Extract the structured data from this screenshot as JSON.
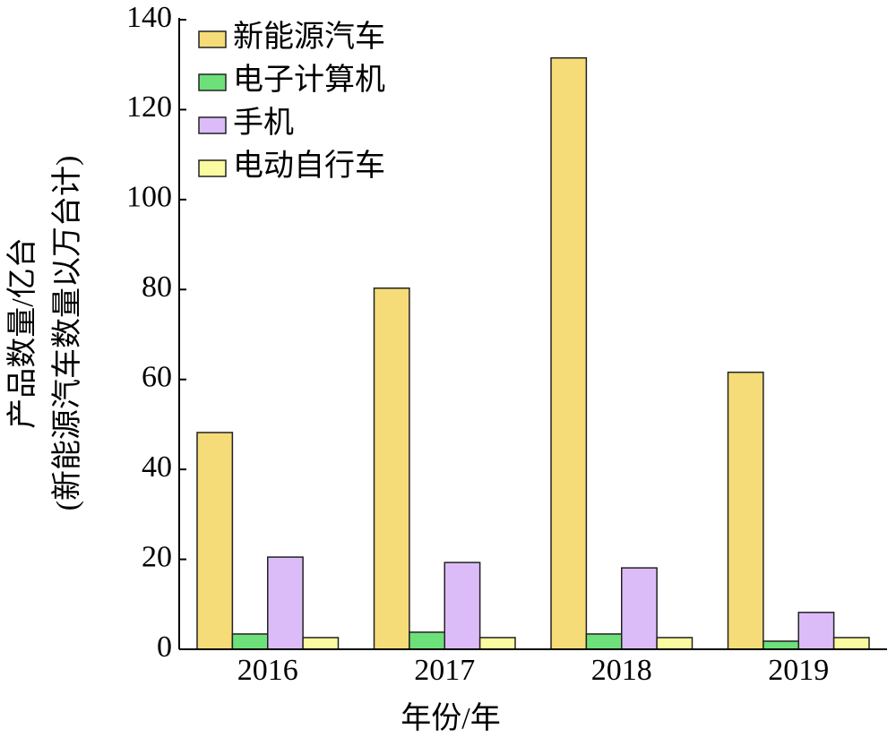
{
  "chart_data": {
    "type": "bar",
    "ylabel": "产品数量/亿台",
    "ylabel_note": "(新能源汽车数量以万台计)",
    "xlabel": "年份/年",
    "categories": [
      "2016",
      "2017",
      "2018",
      "2019"
    ],
    "series": [
      {
        "name": "新能源汽车",
        "color": "#f5dc78",
        "values": [
          48.2,
          80.3,
          131.5,
          61.6
        ]
      },
      {
        "name": "电子计算机",
        "color": "#6ee07a",
        "values": [
          3.4,
          3.8,
          3.4,
          1.8
        ]
      },
      {
        "name": "手机",
        "color": "#dcbcf8",
        "values": [
          20.5,
          19.3,
          18.1,
          8.2
        ]
      },
      {
        "name": "电动自行车",
        "color": "#fafaa0",
        "values": [
          2.6,
          2.6,
          2.6,
          2.6
        ]
      }
    ],
    "ylim": [
      0,
      140
    ],
    "yticks": [
      0,
      20,
      40,
      60,
      80,
      100,
      120,
      140
    ],
    "legend": "upper-left"
  }
}
